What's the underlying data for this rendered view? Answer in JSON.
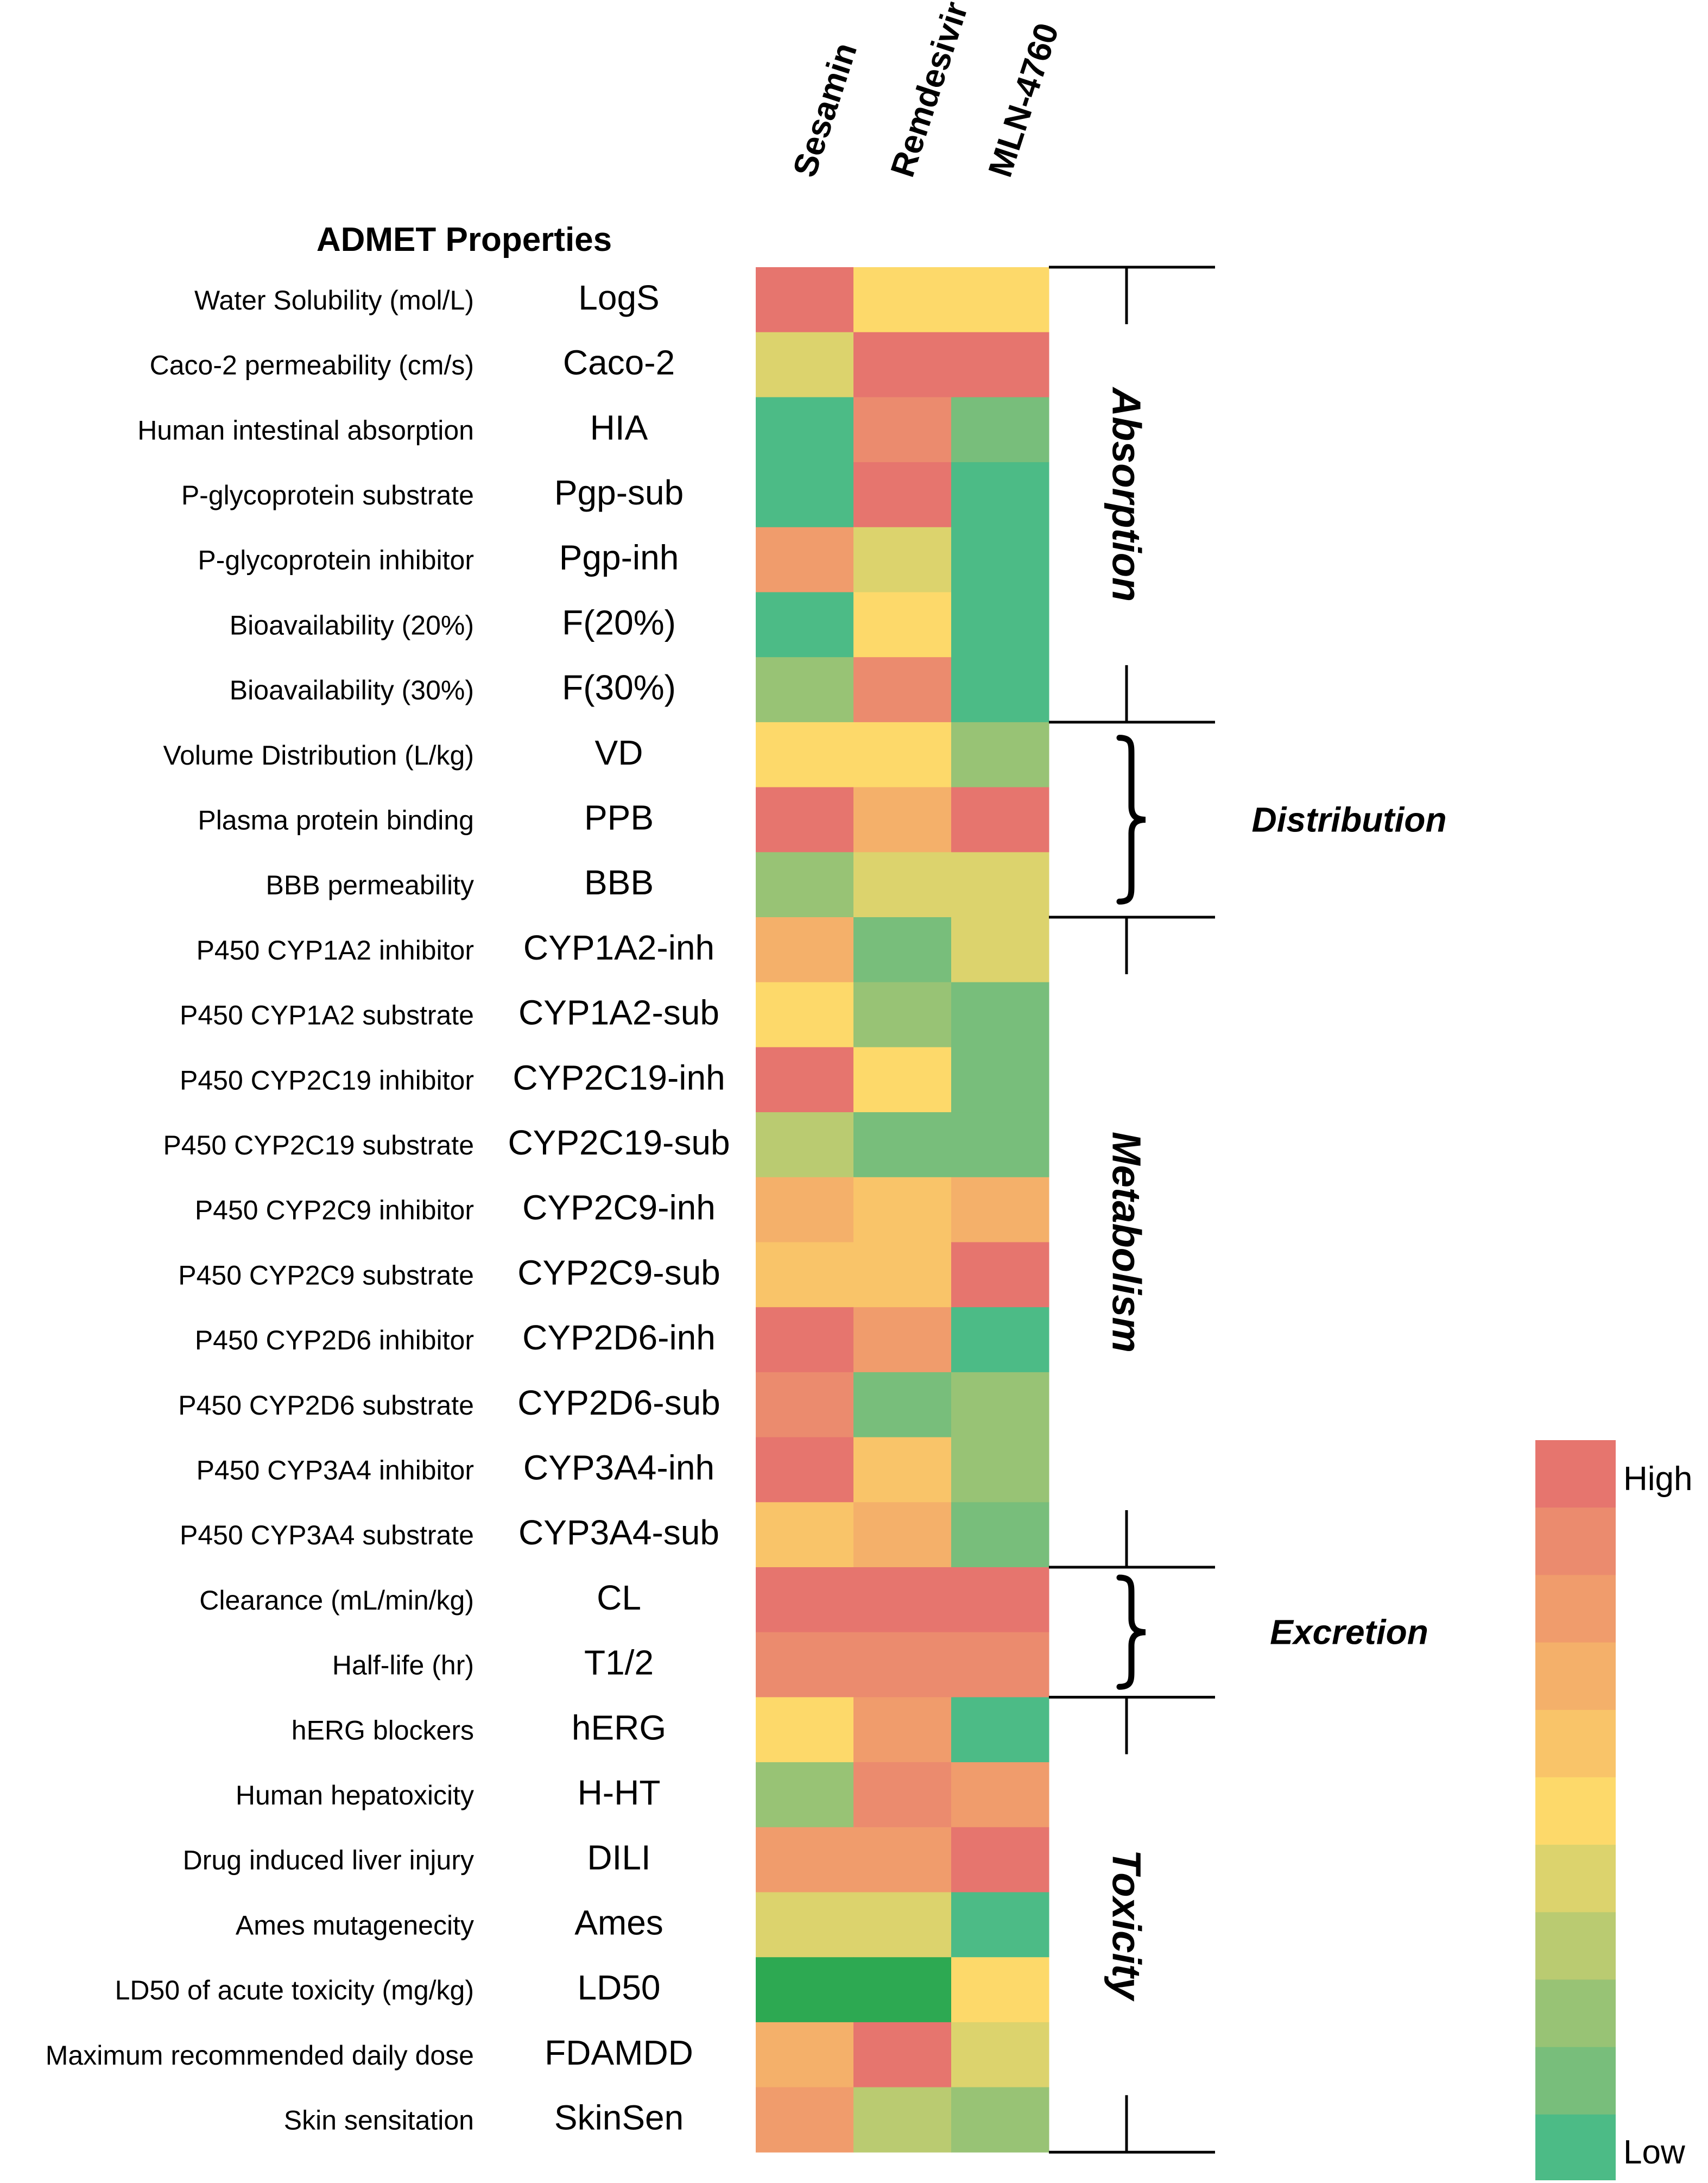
{
  "chart_data": {
    "type": "heatmap",
    "title": "ADMET Properties",
    "columns": [
      "Sesamin",
      "Remdesivir",
      "MLN-4760"
    ],
    "scale": {
      "max_label": "High",
      "min_label": "Low",
      "levels": 11
    },
    "palette": [
      "#e6756e",
      "#eb8b6e",
      "#f09c6c",
      "#f4b06a",
      "#f9c469",
      "#fdd96a",
      "#dcd36d",
      "#bacb71",
      "#98c375",
      "#78be7b",
      "#4cbb86",
      "#2da952"
    ],
    "rows": [
      {
        "name": "Water Solubility (mol/L)",
        "code": "LogS",
        "values": [
          10,
          5,
          5
        ]
      },
      {
        "name": "Caco-2 permeability (cm/s)",
        "code": "Caco-2",
        "values": [
          4,
          10,
          10
        ]
      },
      {
        "name": "Human intestinal absorption",
        "code": "HIA",
        "values": [
          0,
          9,
          1
        ]
      },
      {
        "name": "P-glycoprotein substrate",
        "code": "Pgp-sub",
        "values": [
          0,
          10,
          0
        ]
      },
      {
        "name": "P-glycoprotein inhibitor",
        "code": "Pgp-inh",
        "values": [
          8,
          4,
          0
        ]
      },
      {
        "name": "Bioavailability (20%)",
        "code": "F(20%)",
        "values": [
          0,
          5,
          0
        ]
      },
      {
        "name": "Bioavailability (30%)",
        "code": "F(30%)",
        "values": [
          2,
          9,
          0
        ]
      },
      {
        "name": "Volume Distribution (L/kg)",
        "code": "VD",
        "values": [
          5,
          5,
          2
        ]
      },
      {
        "name": "Plasma protein binding",
        "code": "PPB",
        "values": [
          10,
          7,
          10
        ]
      },
      {
        "name": "BBB permeability",
        "code": "BBB",
        "values": [
          2,
          4,
          4
        ]
      },
      {
        "name": "P450 CYP1A2 inhibitor",
        "code": "CYP1A2-inh",
        "values": [
          7,
          1,
          4
        ]
      },
      {
        "name": "P450 CYP1A2 substrate",
        "code": "CYP1A2-sub",
        "values": [
          5,
          2,
          1
        ]
      },
      {
        "name": "P450 CYP2C19 inhibitor",
        "code": "CYP2C19-inh",
        "values": [
          10,
          5,
          1
        ]
      },
      {
        "name": "P450 CYP2C19 substrate",
        "code": "CYP2C19-sub",
        "values": [
          3,
          1,
          1
        ]
      },
      {
        "name": "P450 CYP2C9 inhibitor",
        "code": "CYP2C9-inh",
        "values": [
          7,
          6,
          7
        ]
      },
      {
        "name": "P450 CYP2C9 substrate",
        "code": "CYP2C9-sub",
        "values": [
          6,
          6,
          10
        ]
      },
      {
        "name": "P450 CYP2D6 inhibitor",
        "code": "CYP2D6-inh",
        "values": [
          10,
          8,
          0
        ]
      },
      {
        "name": "P450 CYP2D6 substrate",
        "code": "CYP2D6-sub",
        "values": [
          9,
          1,
          2
        ]
      },
      {
        "name": "P450 CYP3A4 inhibitor",
        "code": "CYP3A4-inh",
        "values": [
          10,
          6,
          2
        ]
      },
      {
        "name": "P450 CYP3A4 substrate",
        "code": "CYP3A4-sub",
        "values": [
          6,
          7,
          1
        ]
      },
      {
        "name": "Clearance (mL/min/kg)",
        "code": "CL",
        "values": [
          10,
          10,
          10
        ]
      },
      {
        "name": "Half-life (hr)",
        "code": "T1/2",
        "values": [
          9,
          9,
          9
        ]
      },
      {
        "name": "hERG blockers",
        "code": "hERG",
        "values": [
          5,
          8,
          0
        ]
      },
      {
        "name": "Human hepatoxicity",
        "code": "H-HT",
        "values": [
          2,
          9,
          8
        ]
      },
      {
        "name": "Drug induced liver injury",
        "code": "DILI",
        "values": [
          8,
          8,
          10
        ]
      },
      {
        "name": "Ames mutagenecity",
        "code": "Ames",
        "values": [
          4,
          4,
          0
        ]
      },
      {
        "name": "LD50 of acute toxicity (mg/kg)",
        "code": "LD50",
        "values": [
          -1,
          -1,
          5
        ]
      },
      {
        "name": "Maximum recommended daily dose",
        "code": "FDAMDD",
        "values": [
          7,
          10,
          4
        ]
      },
      {
        "name": "Skin sensitation",
        "code": "SkinSen",
        "values": [
          8,
          3,
          2
        ]
      }
    ],
    "groups": [
      {
        "label": "Absorption",
        "rows": [
          0,
          6
        ],
        "marker": "bar"
      },
      {
        "label": "Distribution",
        "rows": [
          7,
          9
        ],
        "marker": "brace"
      },
      {
        "label": "Metabolism",
        "rows": [
          10,
          19
        ],
        "marker": "bar"
      },
      {
        "label": "Excretion",
        "rows": [
          20,
          21
        ],
        "marker": "brace"
      },
      {
        "label": "Toxicity",
        "rows": [
          22,
          28
        ],
        "marker": "bar"
      }
    ]
  }
}
